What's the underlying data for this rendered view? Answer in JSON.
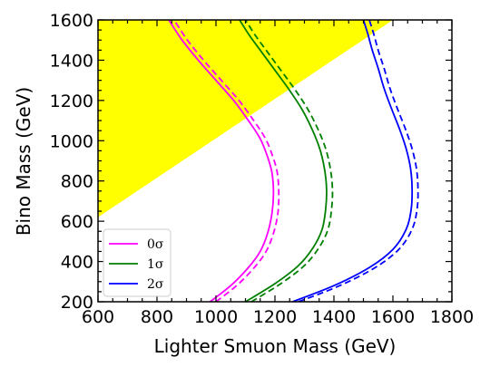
{
  "chart_data": {
    "type": "line",
    "xlabel": "Lighter Smuon Mass (GeV)",
    "ylabel": "Bino Mass (GeV)",
    "xlim": [
      600,
      1800
    ],
    "ylim": [
      200,
      1600
    ],
    "xticks": [
      "600",
      "800",
      "1000",
      "1200",
      "1400",
      "1600",
      "1800"
    ],
    "yticks": [
      "200",
      "400",
      "600",
      "800",
      "1000",
      "1200",
      "1400",
      "1600"
    ],
    "grid": false,
    "legend_position": "lower-left",
    "excluded_region": {
      "color": "#ffff00",
      "polygon": [
        [
          600,
          620
        ],
        [
          600,
          1600
        ],
        [
          1600,
          1600
        ]
      ]
    },
    "series": [
      {
        "name": "0σ",
        "color": "#ff00ff",
        "solid": {
          "x": [
            980,
            1050,
            1110,
            1150,
            1175,
            1190,
            1195,
            1190,
            1175,
            1150,
            1110,
            1060,
            1000,
            940,
            885,
            840
          ],
          "y": [
            200,
            280,
            370,
            450,
            540,
            640,
            740,
            840,
            920,
            1010,
            1100,
            1200,
            1300,
            1400,
            1500,
            1600
          ]
        },
        "dashed": {
          "x": [
            1000,
            1070,
            1130,
            1170,
            1195,
            1210,
            1213,
            1208,
            1193,
            1168,
            1128,
            1078,
            1018,
            958,
            903,
            858
          ],
          "y": [
            200,
            280,
            370,
            450,
            540,
            640,
            740,
            840,
            920,
            1010,
            1100,
            1200,
            1300,
            1400,
            1500,
            1600
          ]
        }
      },
      {
        "name": "1σ",
        "color": "#008000",
        "solid": {
          "x": [
            1100,
            1200,
            1280,
            1330,
            1360,
            1372,
            1375,
            1368,
            1352,
            1325,
            1290,
            1245,
            1195,
            1155,
            1115,
            1080
          ],
          "y": [
            200,
            290,
            380,
            470,
            560,
            660,
            760,
            860,
            960,
            1060,
            1160,
            1260,
            1360,
            1440,
            1520,
            1600
          ]
        },
        "dashed": {
          "x": [
            1120,
            1220,
            1300,
            1350,
            1380,
            1392,
            1395,
            1388,
            1372,
            1345,
            1310,
            1265,
            1215,
            1175,
            1135,
            1100
          ],
          "y": [
            200,
            290,
            380,
            470,
            560,
            660,
            760,
            860,
            960,
            1060,
            1160,
            1260,
            1360,
            1440,
            1520,
            1600
          ]
        }
      },
      {
        "name": "2σ",
        "color": "#0000ff",
        "solid": {
          "x": [
            1260,
            1400,
            1520,
            1600,
            1645,
            1662,
            1665,
            1660,
            1645,
            1622,
            1595,
            1570,
            1550,
            1530,
            1515,
            1500
          ],
          "y": [
            200,
            280,
            370,
            460,
            560,
            660,
            760,
            860,
            960,
            1060,
            1160,
            1260,
            1360,
            1450,
            1530,
            1600
          ]
        },
        "dashed": {
          "x": [
            1280,
            1420,
            1540,
            1620,
            1665,
            1682,
            1685,
            1680,
            1665,
            1642,
            1615,
            1590,
            1570,
            1550,
            1535,
            1520
          ],
          "y": [
            200,
            280,
            370,
            460,
            560,
            660,
            760,
            860,
            960,
            1060,
            1160,
            1260,
            1360,
            1450,
            1530,
            1600
          ]
        }
      }
    ]
  }
}
